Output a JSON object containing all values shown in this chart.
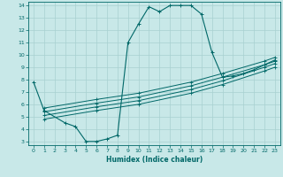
{
  "xlabel": "Humidex (Indice chaleur)",
  "bg_color": "#c8e8e8",
  "grid_color": "#a8d0d0",
  "line_color": "#006868",
  "xlim": [
    -0.5,
    23.5
  ],
  "ylim": [
    2.7,
    14.3
  ],
  "xticks": [
    0,
    1,
    2,
    3,
    4,
    5,
    6,
    7,
    8,
    9,
    10,
    11,
    12,
    13,
    14,
    15,
    16,
    17,
    18,
    19,
    20,
    21,
    22,
    23
  ],
  "yticks": [
    3,
    4,
    5,
    6,
    7,
    8,
    9,
    10,
    11,
    12,
    13,
    14
  ],
  "main_curve_x": [
    0,
    1,
    3,
    4,
    5,
    6,
    7,
    8,
    9,
    10,
    11,
    12,
    13,
    14,
    15,
    16,
    17,
    18,
    19,
    20,
    21,
    22,
    23
  ],
  "main_curve_y": [
    7.8,
    5.5,
    4.5,
    4.2,
    3.0,
    3.0,
    3.2,
    3.5,
    11.0,
    12.5,
    13.9,
    13.5,
    14.0,
    14.0,
    14.0,
    13.3,
    10.2,
    8.2,
    8.3,
    8.5,
    8.8,
    9.2,
    9.5
  ],
  "diag_lines": [
    {
      "x": [
        1,
        6,
        10,
        15,
        18,
        22,
        23
      ],
      "y": [
        4.8,
        5.5,
        6.0,
        6.9,
        7.6,
        8.7,
        9.0
      ]
    },
    {
      "x": [
        1,
        6,
        10,
        15,
        18,
        22,
        23
      ],
      "y": [
        5.1,
        5.8,
        6.3,
        7.2,
        7.9,
        9.0,
        9.3
      ]
    },
    {
      "x": [
        1,
        6,
        10,
        15,
        18,
        22,
        23
      ],
      "y": [
        5.4,
        6.1,
        6.6,
        7.5,
        8.2,
        9.2,
        9.6
      ]
    },
    {
      "x": [
        1,
        6,
        10,
        15,
        18,
        22,
        23
      ],
      "y": [
        5.7,
        6.4,
        6.9,
        7.8,
        8.5,
        9.5,
        9.8
      ]
    }
  ]
}
